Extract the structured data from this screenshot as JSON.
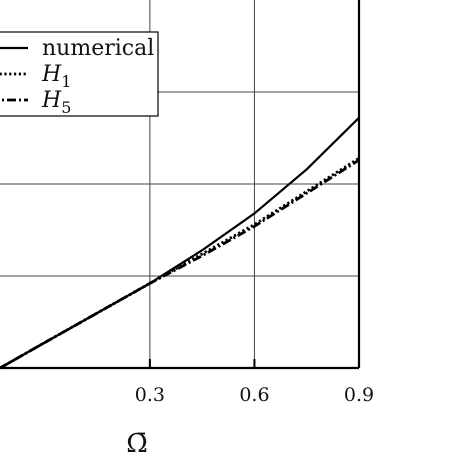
{
  "chart_data": {
    "type": "line",
    "xlabel": "Ω̄",
    "ylabel": "",
    "xlim": [
      -0.13,
      0.9
    ],
    "ylim": [
      0.0,
      1.0
    ],
    "grid": true,
    "legend_position": "top-left",
    "x_ticks": [
      0.3,
      0.6,
      0.9
    ],
    "x_tick_labels": [
      "0.3",
      "0.6",
      "0.9"
    ],
    "y_gridlines": [
      0.0,
      0.25,
      0.5,
      0.75,
      1.0
    ],
    "series": [
      {
        "name": "numerical",
        "style": "solid",
        "x": [
          -0.13,
          0.0,
          0.15,
          0.3,
          0.45,
          0.6,
          0.75,
          0.9
        ],
        "y": [
          0.0,
          0.07,
          0.15,
          0.23,
          0.32,
          0.42,
          0.54,
          0.68
        ]
      },
      {
        "name": "H1",
        "name_base": "H",
        "name_sub": "1",
        "style": "dotted",
        "x": [
          -0.13,
          0.0,
          0.15,
          0.3,
          0.45,
          0.6,
          0.75,
          0.9
        ],
        "y": [
          0.0,
          0.07,
          0.15,
          0.23,
          0.31,
          0.39,
          0.48,
          0.57
        ]
      },
      {
        "name": "H5",
        "name_base": "H",
        "name_sub": "5",
        "style": "dashdot",
        "x": [
          -0.13,
          0.0,
          0.15,
          0.3,
          0.45,
          0.6,
          0.75,
          0.9
        ],
        "y": [
          0.0,
          0.07,
          0.15,
          0.23,
          0.305,
          0.385,
          0.475,
          0.565
        ]
      }
    ]
  },
  "colors": {
    "line": "#000000",
    "grid": "#444444",
    "axis": "#000000",
    "background": "#ffffff"
  }
}
